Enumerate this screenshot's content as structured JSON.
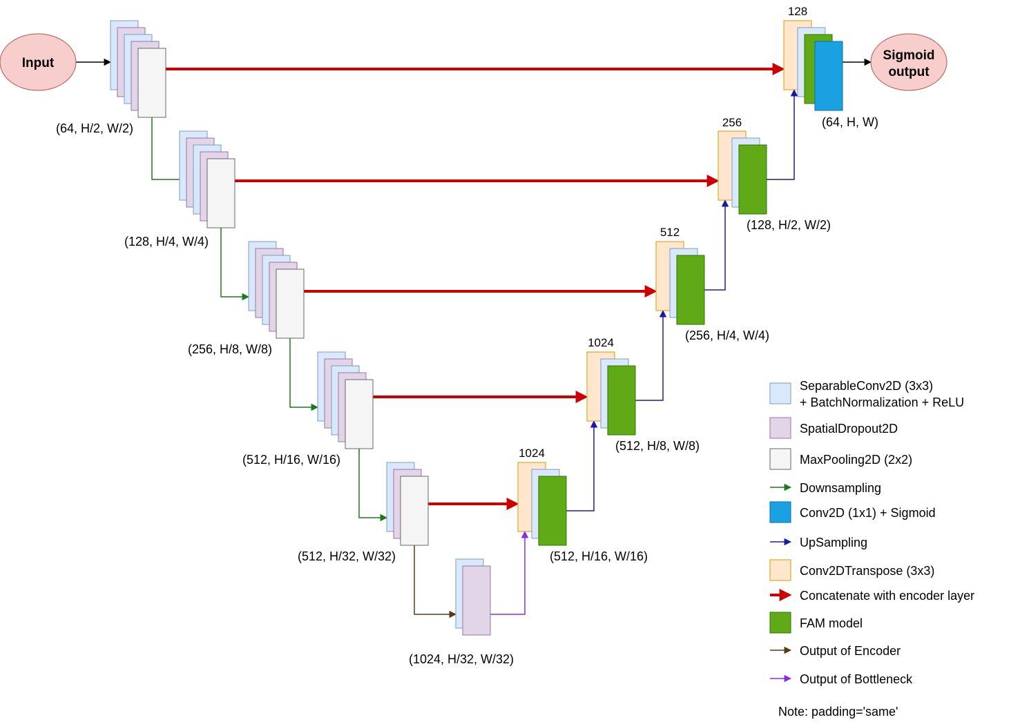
{
  "nodes": {
    "input": "Input",
    "output_line1": "Sigmoid",
    "output_line2": "output"
  },
  "encoder": [
    {
      "label": "(64, H/2, W/2)"
    },
    {
      "label": "(128, H/4, W/4)"
    },
    {
      "label": "(256, H/8, W/8)"
    },
    {
      "label": "(512, H/16, W/16)"
    },
    {
      "label": "(512, H/32, W/32)"
    }
  ],
  "bottleneck": {
    "label": "(1024, H/32, W/32)"
  },
  "decoder": [
    {
      "channels": "1024",
      "label": "(512, H/16, W/16)"
    },
    {
      "channels": "1024",
      "label": "(512, H/8, W/8)"
    },
    {
      "channels": "512",
      "label": "(256, H/4, W/4)"
    },
    {
      "channels": "256",
      "label": "(128, H/2, W/2)"
    },
    {
      "channels": "128",
      "label": "(64, H, W)"
    }
  ],
  "legend": [
    {
      "kind": "box",
      "color": "#dae8fc",
      "stroke": "#7a9cc6",
      "lines": [
        "SeparableConv2D (3x3)",
        "+ BatchNormalization + ReLU"
      ]
    },
    {
      "kind": "box",
      "color": "#e1d5e7",
      "stroke": "#9673a6",
      "lines": [
        "SpatialDropout2D"
      ]
    },
    {
      "kind": "box",
      "color": "#f5f5f5",
      "stroke": "#666666",
      "lines": [
        "MaxPooling2D (2x2)"
      ]
    },
    {
      "kind": "arrow",
      "color": "#1a7a1a",
      "lines": [
        "Downsampling"
      ]
    },
    {
      "kind": "box",
      "color": "#1ba1e2",
      "stroke": "#006eaf",
      "lines": [
        "Conv2D (1x1) + Sigmoid"
      ]
    },
    {
      "kind": "arrow",
      "color": "#1a1aa0",
      "lines": [
        "UpSampling"
      ]
    },
    {
      "kind": "box",
      "color": "#ffe6cc",
      "stroke": "#d79b00",
      "lines": [
        "Conv2DTranspose (3x3)"
      ]
    },
    {
      "kind": "thick-arrow",
      "color": "#cc0000",
      "lines": [
        "Concatenate with encoder layer"
      ]
    },
    {
      "kind": "box",
      "color": "#60a917",
      "stroke": "#2d7600",
      "lines": [
        "FAM model"
      ]
    },
    {
      "kind": "arrow",
      "color": "#5a3a10",
      "lines": [
        "Output of Encoder"
      ]
    },
    {
      "kind": "arrow",
      "color": "#8a2be2",
      "lines": [
        "Output of Bottleneck"
      ]
    }
  ],
  "note": "Note: padding='same'",
  "colors": {
    "sep_conv": "#dae8fc",
    "dropout": "#e1d5e7",
    "maxpool": "#f5f5f5",
    "transpose": "#ffe6cc",
    "fam": "#60a917",
    "conv1x1": "#1ba1e2",
    "node_fill": "#f8cecc",
    "skip": "#cc0000",
    "down": "#1a7a1a",
    "up": "#1a1aa0",
    "enc_out": "#5a3a10",
    "bott_out": "#8a2be2"
  }
}
